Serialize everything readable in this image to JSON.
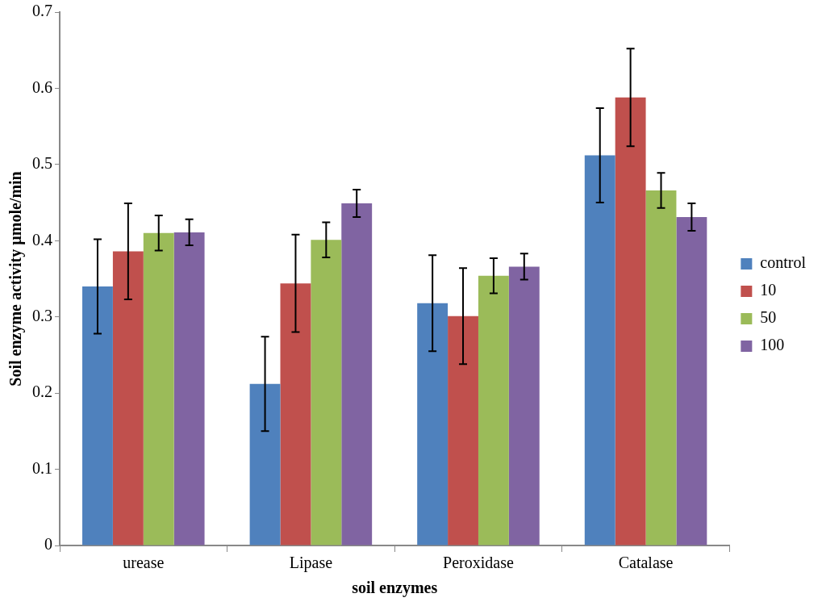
{
  "chart_data": {
    "type": "bar",
    "xlabel": "soil enzymes",
    "ylabel": "Soil enzyme activity µmole/min",
    "categories": [
      "urease",
      "Lipase",
      "Peroxidase",
      "Catalase"
    ],
    "series": [
      {
        "name": "control",
        "color": "#4f81bd",
        "values": [
          0.34,
          0.212,
          0.318,
          0.512
        ],
        "errors": [
          0.062,
          0.062,
          0.063,
          0.062
        ]
      },
      {
        "name": "10",
        "color": "#c0504d",
        "values": [
          0.386,
          0.344,
          0.301,
          0.588
        ],
        "errors": [
          0.063,
          0.064,
          0.063,
          0.064
        ]
      },
      {
        "name": "50",
        "color": "#9bbb59",
        "values": [
          0.41,
          0.401,
          0.354,
          0.466
        ],
        "errors": [
          0.023,
          0.023,
          0.023,
          0.023
        ]
      },
      {
        "name": "100",
        "color": "#8064a2",
        "values": [
          0.411,
          0.449,
          0.366,
          0.431
        ],
        "errors": [
          0.017,
          0.018,
          0.017,
          0.018
        ]
      }
    ],
    "ylim": [
      0,
      0.7
    ],
    "yticks": [
      0,
      0.1,
      0.2,
      0.3,
      0.4,
      0.5,
      0.6,
      0.7
    ],
    "grid": false,
    "legend": "right"
  }
}
